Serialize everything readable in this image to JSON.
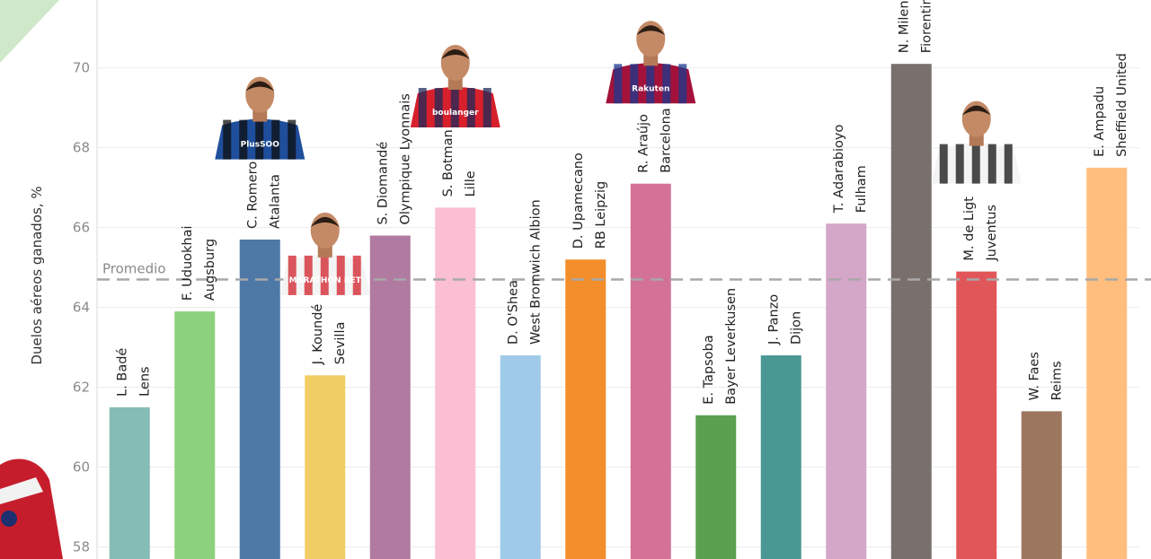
{
  "chart_data": {
    "type": "bar",
    "ylabel": "Duelos aéreos ganados, %",
    "ylim": [
      57.7,
      71.7
    ],
    "yticks": [
      58,
      60,
      62,
      64,
      66,
      68,
      70
    ],
    "grid": true,
    "average": {
      "label": "Promedio",
      "value": 64.7
    },
    "categories": [
      {
        "player": "L. Badé",
        "club": "Lens",
        "value": 61.5,
        "color": "#86BCB6"
      },
      {
        "player": "F. Uduokhai",
        "club": "Augsburg",
        "value": 63.9,
        "color": "#8CD17D"
      },
      {
        "player": "C. Romero",
        "club": "Atalanta",
        "value": 65.7,
        "color": "#4E79A7"
      },
      {
        "player": "J. Koundé",
        "club": "Sevilla",
        "value": 62.3,
        "color": "#F1CE63"
      },
      {
        "player": "S. Diomandé",
        "club": "Olympique Lyonnais",
        "value": 65.8,
        "color": "#B07AA1"
      },
      {
        "player": "S. Botman",
        "club": "Lille",
        "value": 66.5,
        "color": "#FABFD2"
      },
      {
        "player": "D. O'Shea",
        "club": "West Bromwich Albion",
        "value": 62.8,
        "color": "#A0CBE8"
      },
      {
        "player": "D. Upamecano",
        "club": "RB Leipzig",
        "value": 65.2,
        "color": "#F28E2B"
      },
      {
        "player": "R. Araújo",
        "club": "Barcelona",
        "value": 67.1,
        "color": "#D37295"
      },
      {
        "player": "E. Tapsoba",
        "club": "Bayer Leverkusen",
        "value": 61.3,
        "color": "#59A14F"
      },
      {
        "player": "J. Panzo",
        "club": "Dijon",
        "value": 62.8,
        "color": "#499894"
      },
      {
        "player": "T. Adarabioyo",
        "club": "Fulham",
        "value": 66.1,
        "color": "#D4A6C8"
      },
      {
        "player": "N. Milenković",
        "club": "Fiorentina",
        "value": 70.1,
        "color": "#79706E"
      },
      {
        "player": "M. de Ligt",
        "club": "Juventus",
        "value": 64.9,
        "color": "#E15759"
      },
      {
        "player": "W. Faes",
        "club": "Reims",
        "value": 61.4,
        "color": "#9D7660"
      },
      {
        "player": "E. Ampadu",
        "club": "Sheffield United",
        "value": 67.5,
        "color": "#FFBE7D"
      }
    ],
    "player_photos": [
      {
        "player": "C. Romero",
        "jersey_text": "PlusSOO"
      },
      {
        "player": "J. Koundé",
        "jersey_text": "MARATHON BET"
      },
      {
        "player": "S. Botman",
        "jersey_text": "boulanger"
      },
      {
        "player": "R. Araújo",
        "jersey_text": "Rakuten"
      },
      {
        "player": "M. de Ligt",
        "jersey_text": ""
      }
    ]
  }
}
